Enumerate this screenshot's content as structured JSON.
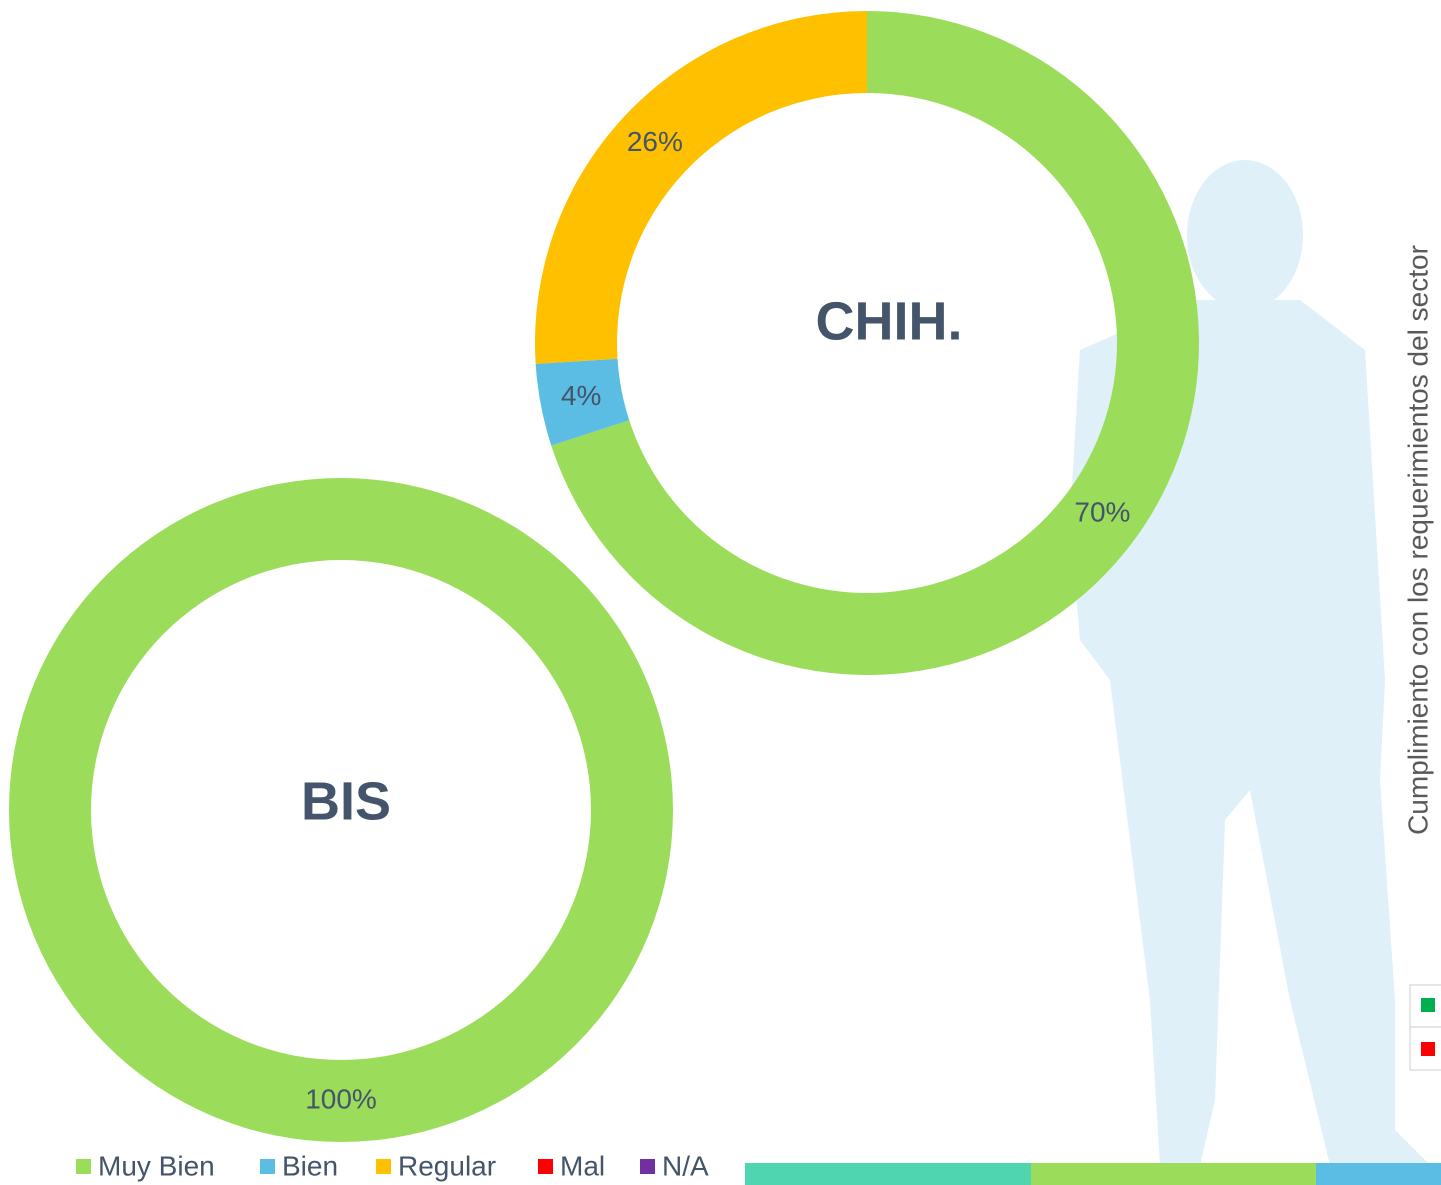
{
  "legend": {
    "categories": [
      "Muy Bien",
      "Bien",
      "Regular",
      "Mal",
      "N/A"
    ],
    "colors": [
      "#9bdc5a",
      "#5bbde4",
      "#ffc000",
      "#ff0000",
      "#7030a0"
    ]
  },
  "side_label": "Cumplimiento con los requerimientos del sector",
  "chart_data": [
    {
      "type": "donut",
      "center_label": "CHIH.",
      "values": [
        70,
        4,
        26,
        null,
        null
      ],
      "value_labels": [
        "70%",
        "4%",
        "26%",
        null,
        null
      ]
    },
    {
      "type": "donut",
      "center_label": "BIS",
      "values": [
        100,
        null,
        null,
        null,
        null
      ],
      "value_labels": [
        "100%",
        null,
        null,
        null,
        null
      ]
    }
  ]
}
